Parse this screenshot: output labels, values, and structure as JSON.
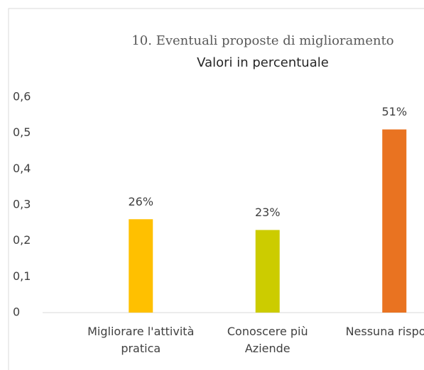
{
  "chart_data": {
    "type": "bar",
    "title": "10. Eventuali proposte di miglioramento",
    "subtitle": "Valori in percentuale",
    "categories": [
      "Migliorare l'attività pratica",
      "Conoscere più Aziende",
      "Nessuna risposta"
    ],
    "values": [
      0.26,
      0.23,
      0.51
    ],
    "value_labels": [
      "26%",
      "23%",
      "51%"
    ],
    "colors": [
      "#ffc000",
      "#cccc00",
      "#e97321"
    ],
    "ylim": [
      0,
      0.6
    ],
    "yticks": [
      0,
      {
        "value": 0.1,
        "label": "0,1"
      },
      {
        "value": 0.2,
        "label": "0,2"
      },
      {
        "value": 0.3,
        "label": "0,3"
      },
      {
        "value": 0.4,
        "label": "0,4"
      },
      {
        "value": 0.5,
        "label": "0,5"
      },
      {
        "value": 0.6,
        "label": "0,6"
      }
    ],
    "grid": false
  }
}
